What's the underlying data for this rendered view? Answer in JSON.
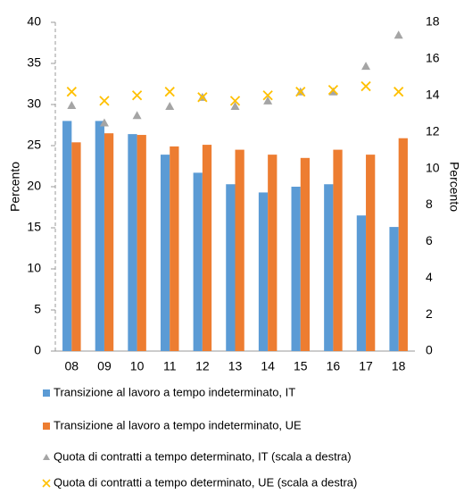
{
  "chart_data": {
    "type": "bar",
    "categories": [
      "08",
      "09",
      "10",
      "11",
      "12",
      "13",
      "14",
      "15",
      "16",
      "17",
      "18"
    ],
    "y_label": "Percento",
    "y2_label": "Percento",
    "ylim": [
      0,
      40
    ],
    "yticks": [
      0,
      5,
      10,
      15,
      20,
      25,
      30,
      35,
      40
    ],
    "y2lim": [
      0,
      18
    ],
    "y2ticks": [
      0,
      2,
      4,
      6,
      8,
      10,
      12,
      14,
      16,
      18
    ],
    "series": [
      {
        "name": "Transizione al lavoro a tempo indeterminato, IT",
        "type": "bar",
        "color": "#5b9bd5",
        "values": [
          28.0,
          28.0,
          26.4,
          23.9,
          21.7,
          20.3,
          19.3,
          20.0,
          20.3,
          16.5,
          15.1
        ]
      },
      {
        "name": "Transizione al lavoro a tempo indeterminato, UE",
        "type": "bar",
        "color": "#ed7d31",
        "values": [
          25.4,
          26.5,
          26.3,
          24.9,
          25.1,
          24.5,
          23.9,
          23.5,
          24.5,
          23.9,
          25.9
        ]
      },
      {
        "name": "Quota di contratti a tempo determinato, IT (scala a destra)",
        "type": "scatter",
        "marker": "triangle",
        "color": "#a5a5a5",
        "axis": "y2",
        "values": [
          13.45,
          12.5,
          12.9,
          13.4,
          13.9,
          13.4,
          13.7,
          14.2,
          14.2,
          15.6,
          17.3
        ]
      },
      {
        "name": "Quota di contratti a tempo determinato, UE (scala a destra)",
        "type": "scatter",
        "marker": "x",
        "color": "#ffc000",
        "axis": "y2",
        "values": [
          14.2,
          13.7,
          14.0,
          14.2,
          13.9,
          13.7,
          14.0,
          14.2,
          14.3,
          14.5,
          14.2
        ]
      }
    ]
  }
}
